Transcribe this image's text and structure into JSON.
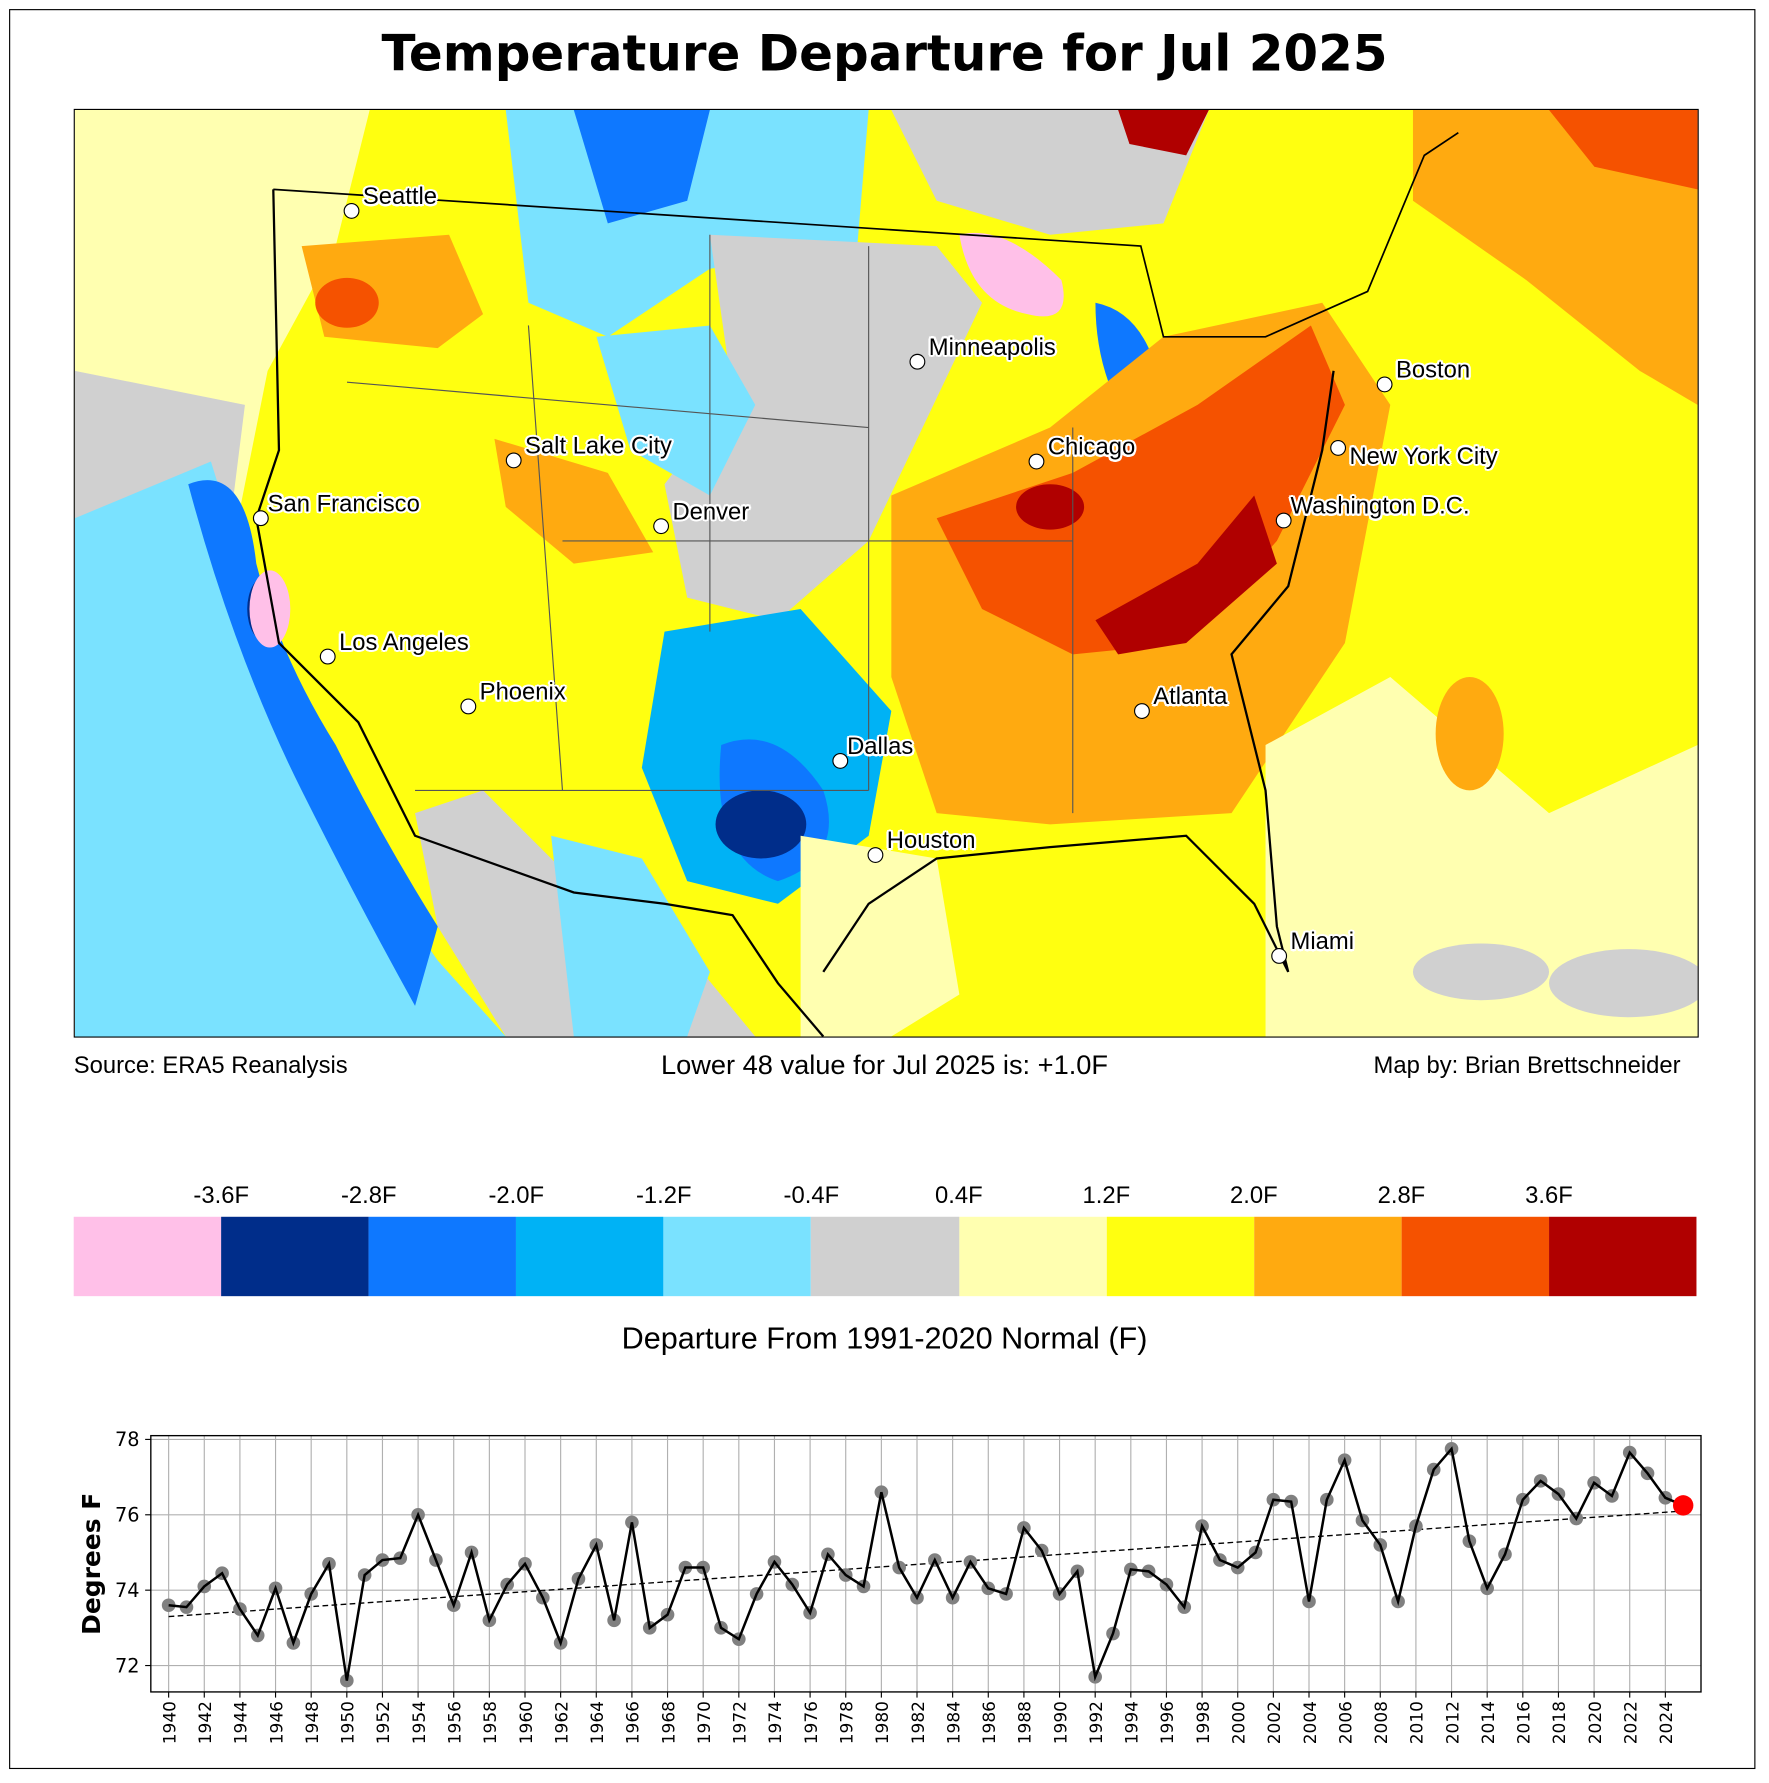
{
  "title": "Temperature Departure for Jul 2025",
  "map": {
    "cities": [
      {
        "name": "Seattle"
      },
      {
        "name": "Minneapolis"
      },
      {
        "name": "Boston"
      },
      {
        "name": "Chicago"
      },
      {
        "name": "New York City"
      },
      {
        "name": "Salt Lake City"
      },
      {
        "name": "San Francisco"
      },
      {
        "name": "Denver"
      },
      {
        "name": "Washington D.C."
      },
      {
        "name": "Los Angeles"
      },
      {
        "name": "Phoenix"
      },
      {
        "name": "Atlanta"
      },
      {
        "name": "Dallas"
      },
      {
        "name": "Houston"
      },
      {
        "name": "Miami"
      }
    ]
  },
  "footer": {
    "source": "Source: ERA5 Reanalysis",
    "summary": "Lower 48 value for Jul 2025 is: +1.0F",
    "credit": "Map by: Brian Brettschneider"
  },
  "colorbar": {
    "colors": [
      "#ffc0e8",
      "#002d8a",
      "#0e78ff",
      "#00b2f5",
      "#7ae2ff",
      "#d0d0d0",
      "#ffffb0",
      "#ffff10",
      "#ffaa10",
      "#f55200",
      "#b00000"
    ],
    "labels": [
      "-3.6F",
      "-2.8F",
      "-2.0F",
      "-1.2F",
      "-0.4F",
      "0.4F",
      "1.2F",
      "2.0F",
      "2.8F",
      "3.6F"
    ],
    "title": "Departure From 1991-2020 Normal (F)"
  },
  "chart_data": {
    "type": "line",
    "ylabel": "Degrees F",
    "xlabel": "",
    "ylim": [
      71.3,
      78.1
    ],
    "xlim": [
      1939,
      2026
    ],
    "yticks": [
      72,
      74,
      76,
      78
    ],
    "xticks_step": 2,
    "grid": true,
    "x_start": 1940,
    "values": [
      73.6,
      73.55,
      74.1,
      74.45,
      73.5,
      72.8,
      74.05,
      72.6,
      73.9,
      74.7,
      71.6,
      74.4,
      74.8,
      74.85,
      76.0,
      74.8,
      73.6,
      75.0,
      73.2,
      74.15,
      74.7,
      73.8,
      72.6,
      74.3,
      75.2,
      73.2,
      75.8,
      73.0,
      73.35,
      74.6,
      74.6,
      73.0,
      72.7,
      73.9,
      74.75,
      74.15,
      73.4,
      74.95,
      74.4,
      74.1,
      76.6,
      74.6,
      73.8,
      74.8,
      73.8,
      74.75,
      74.05,
      73.9,
      75.65,
      75.05,
      73.9,
      74.5,
      71.7,
      72.85,
      74.55,
      74.5,
      74.15,
      73.55,
      75.7,
      74.8,
      74.6,
      75.0,
      76.4,
      76.35,
      73.7,
      76.4,
      77.45,
      75.85,
      75.2,
      73.7,
      75.7,
      77.2,
      77.75,
      75.3,
      74.05,
      74.95,
      76.4,
      76.9,
      76.55,
      75.9,
      76.85,
      76.5,
      77.65,
      77.1,
      76.45,
      76.25
    ],
    "trend": {
      "x": [
        1940,
        2025
      ],
      "y": [
        73.3,
        76.1
      ]
    },
    "highlight": {
      "year": 2025,
      "color": "#ff0000"
    },
    "marker_color": "#808080",
    "line_color": "#000000"
  }
}
